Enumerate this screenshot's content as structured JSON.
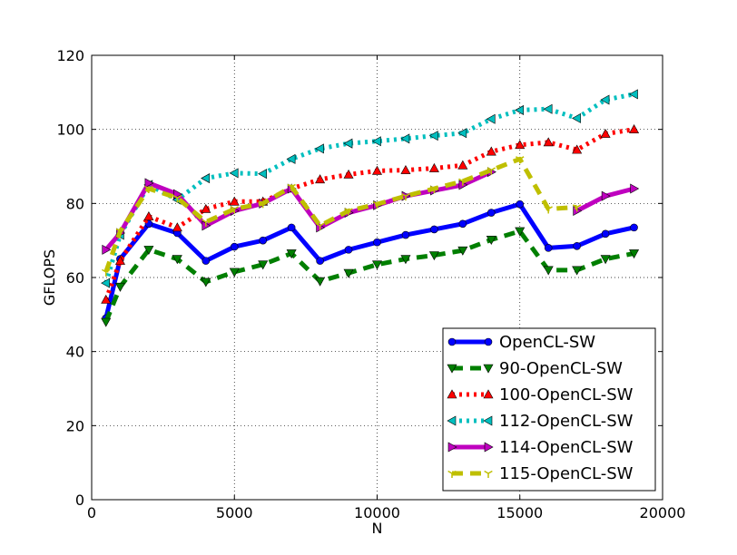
{
  "chart_data": {
    "type": "line",
    "title": "",
    "xlabel": "N",
    "ylabel": "GFLOPS",
    "xlim": [
      0,
      20000
    ],
    "ylim": [
      0,
      120
    ],
    "x_ticks": [
      0,
      5000,
      10000,
      15000,
      20000
    ],
    "y_ticks": [
      0,
      20,
      40,
      60,
      80,
      100,
      120
    ],
    "x_tick_labels": [
      "0",
      "5000",
      "10000",
      "15000",
      "20000"
    ],
    "y_tick_labels": [
      "0",
      "20",
      "40",
      "60",
      "80",
      "100",
      "120"
    ],
    "grid": true,
    "legend_position": "lower-right",
    "x": [
      500,
      1000,
      2000,
      3000,
      4000,
      5000,
      6000,
      7000,
      8000,
      9000,
      10000,
      11000,
      12000,
      13000,
      14000,
      15000,
      16000,
      17000,
      18000,
      19000
    ],
    "series": [
      {
        "name": "OpenCL-SW",
        "color": "#0000ff",
        "dash": "solid",
        "marker": "circle",
        "values": [
          49,
          65,
          74.5,
          72,
          64.5,
          68.3,
          70,
          73.5,
          64.5,
          67.5,
          69.5,
          71.5,
          73,
          74.5,
          77.5,
          79.8,
          68,
          68.5,
          71.8,
          73.5
        ]
      },
      {
        "name": "90-OpenCL-SW",
        "color": "#007f00",
        "dash": "dashed",
        "marker": "triangle-down",
        "values": [
          48,
          57.5,
          67.5,
          65,
          58.8,
          61.5,
          63.5,
          66.5,
          59,
          61.2,
          63.5,
          65,
          66,
          67.3,
          70.2,
          72.5,
          62,
          62,
          65,
          66.5
        ]
      },
      {
        "name": "100-OpenCL-SW",
        "color": "#ff0000",
        "dash": "dotted",
        "marker": "triangle-up",
        "values": [
          54,
          64.5,
          76.5,
          73.5,
          78.5,
          80.5,
          80.5,
          84,
          86.5,
          87.8,
          88.8,
          89,
          89.5,
          90.3,
          94,
          95.8,
          96.5,
          94.5,
          98.8,
          100
        ]
      },
      {
        "name": "112-OpenCL-SW",
        "color": "#00bfbf",
        "dash": "dotted",
        "marker": "triangle-left",
        "values": [
          58.5,
          71.5,
          85,
          81,
          86.8,
          88.2,
          88,
          92,
          94.8,
          96.2,
          96.8,
          97.5,
          98.3,
          99,
          102.8,
          105.2,
          105.5,
          103,
          108,
          109.5
        ]
      },
      {
        "name": "114-OpenCL-SW",
        "color": "#bf00bf",
        "dash": "solid",
        "marker": "triangle-right",
        "values": [
          67.5,
          72,
          85.5,
          82.5,
          74,
          78,
          80,
          84,
          73.5,
          77.5,
          79.5,
          82,
          83.5,
          85,
          88.5,
          null,
          null,
          78,
          82,
          84
        ]
      },
      {
        "name": "115-OpenCL-SW",
        "color": "#bfbf00",
        "dash": "dashed",
        "marker": "tri-down",
        "values": [
          61.5,
          72.5,
          84,
          81.5,
          75,
          78.5,
          80,
          84.5,
          74,
          78,
          79.8,
          82,
          84,
          86,
          89,
          92,
          78.5,
          79,
          null,
          null
        ]
      }
    ]
  }
}
